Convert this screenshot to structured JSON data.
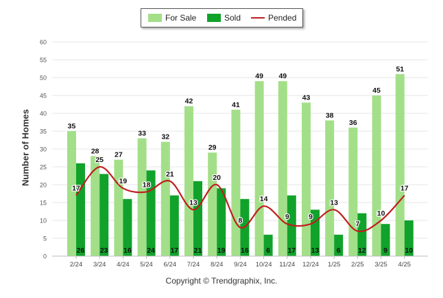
{
  "legend": {
    "for_sale": "For Sale",
    "sold": "Sold",
    "pended": "Pended"
  },
  "ylabel": "Number of Homes",
  "copyright": "Copyright © Trendgraphix, Inc.",
  "colors": {
    "for_sale": "#a3df89",
    "sold": "#11a22b",
    "pended": "#bf1e1e",
    "grid": "#e6e6e6"
  },
  "chart_data": {
    "type": "bar",
    "categories": [
      "2/24",
      "3/24",
      "4/24",
      "5/24",
      "6/24",
      "7/24",
      "8/24",
      "9/24",
      "10/24",
      "11/24",
      "12/24",
      "1/25",
      "2/25",
      "3/25",
      "4/25"
    ],
    "series": [
      {
        "name": "For Sale",
        "type": "bar",
        "values": [
          35,
          28,
          27,
          33,
          32,
          42,
          29,
          41,
          49,
          49,
          43,
          38,
          36,
          45,
          51
        ]
      },
      {
        "name": "Sold",
        "type": "bar",
        "values": [
          26,
          23,
          16,
          24,
          17,
          21,
          19,
          16,
          6,
          17,
          13,
          6,
          12,
          9,
          10
        ]
      },
      {
        "name": "Pended",
        "type": "line",
        "values": [
          17,
          25,
          19,
          18,
          21,
          13,
          20,
          8,
          14,
          9,
          9,
          13,
          7,
          10,
          17
        ]
      }
    ],
    "ylim": [
      0,
      60
    ],
    "yticks": [
      0,
      5,
      10,
      15,
      20,
      25,
      30,
      35,
      40,
      45,
      50,
      55,
      60
    ],
    "grid": true,
    "legend_position": "top-center"
  }
}
